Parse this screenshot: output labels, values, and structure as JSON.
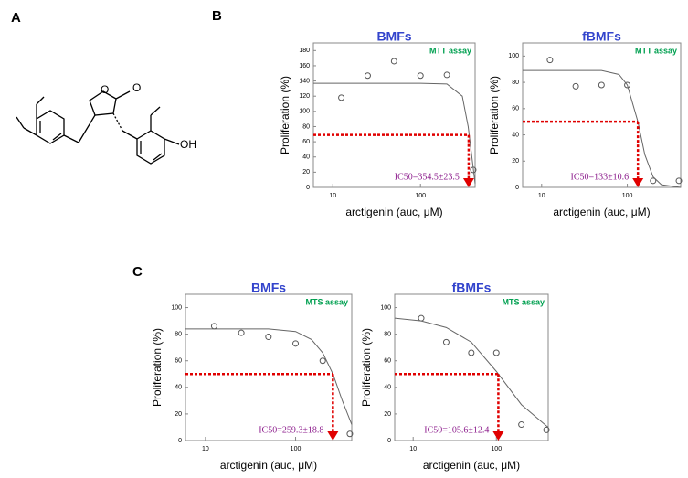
{
  "panels": [
    "A",
    "B",
    "C"
  ],
  "molecule": {
    "labels": [
      "O",
      "O",
      "OH"
    ]
  },
  "chart_data": [
    {
      "type": "scatter",
      "title": "BMFs",
      "badge": "MTT assay",
      "x_label": "arctigenin (auc, μM)",
      "y_label": "Proliferation (%)",
      "annotation": "IC50=354.5±23.5",
      "log_x": true,
      "xlim": [
        6,
        420
      ],
      "xticks": [
        10,
        100
      ],
      "ylim": [
        0,
        190
      ],
      "yticks": [
        0,
        20,
        40,
        60,
        80,
        100,
        120,
        140,
        160,
        180
      ],
      "series": [
        {
          "style": "markers",
          "color": "#555555",
          "x": [
            12.5,
            25,
            50,
            100,
            200,
            400
          ],
          "values": [
            118,
            147,
            166,
            147,
            148,
            23
          ]
        },
        {
          "style": "line",
          "color": "#666666",
          "x": [
            6,
            100,
            200,
            300,
            350,
            400,
            420
          ],
          "values": [
            137,
            137,
            136,
            120,
            80,
            25,
            5
          ]
        }
      ],
      "reference_line": {
        "x": 354.5,
        "y": 69,
        "color": "#e00000"
      }
    },
    {
      "type": "scatter",
      "title": "fBMFs",
      "badge": "MTT assay",
      "x_label": "arctigenin (auc, μM)",
      "y_label": "Proliferation (%)",
      "annotation": "IC50=133±10.6",
      "log_x": true,
      "xlim": [
        6,
        420
      ],
      "xticks": [
        10,
        100
      ],
      "ylim": [
        0,
        110
      ],
      "yticks": [
        0,
        20,
        40,
        60,
        80,
        100
      ],
      "series": [
        {
          "style": "markers",
          "color": "#555555",
          "x": [
            12.5,
            25,
            50,
            100,
            200,
            400
          ],
          "values": [
            97,
            77,
            78,
            78,
            5,
            5
          ]
        },
        {
          "style": "line",
          "color": "#666666",
          "x": [
            6,
            50,
            80,
            100,
            133,
            160,
            200,
            250,
            420
          ],
          "values": [
            89,
            89,
            86,
            78,
            50,
            25,
            8,
            2,
            0
          ]
        }
      ],
      "reference_line": {
        "x": 133,
        "y": 50,
        "color": "#e00000"
      }
    },
    {
      "type": "scatter",
      "title": "BMFs",
      "badge": "MTS assay",
      "x_label": "arctigenin (auc, μM)",
      "y_label": "Proliferation (%)",
      "annotation": "IC50=259.3±18.8",
      "log_x": true,
      "xlim": [
        6,
        420
      ],
      "xticks": [
        10,
        100
      ],
      "ylim": [
        0,
        110
      ],
      "yticks": [
        0,
        20,
        40,
        60,
        80,
        100
      ],
      "series": [
        {
          "style": "markers",
          "color": "#555555",
          "x": [
            12.5,
            25,
            50,
            100,
            200,
            400
          ],
          "values": [
            86,
            81,
            78,
            73,
            60,
            5
          ]
        },
        {
          "style": "line",
          "color": "#666666",
          "x": [
            6,
            50,
            100,
            150,
            200,
            260,
            330,
            420
          ],
          "values": [
            84,
            84,
            82,
            76,
            66,
            50,
            30,
            12
          ]
        }
      ],
      "reference_line": {
        "x": 259.3,
        "y": 50,
        "color": "#e00000"
      }
    },
    {
      "type": "scatter",
      "title": "fBMFs",
      "badge": "MTS assay",
      "x_label": "arctigenin (auc, μM)",
      "y_label": "Proliferation (%)",
      "annotation": "IC50=105.6±12.4",
      "log_x": true,
      "xlim": [
        6,
        420
      ],
      "xticks": [
        10,
        100
      ],
      "ylim": [
        0,
        110
      ],
      "yticks": [
        0,
        20,
        40,
        60,
        80,
        100
      ],
      "series": [
        {
          "style": "markers",
          "color": "#555555",
          "x": [
            12.5,
            25,
            50,
            100,
            200,
            400
          ],
          "values": [
            92,
            74,
            66,
            66,
            12,
            8
          ]
        },
        {
          "style": "line",
          "color": "#666666",
          "x": [
            6,
            12.5,
            25,
            50,
            100,
            200,
            400,
            420
          ],
          "values": [
            92,
            90,
            85,
            74,
            52,
            27,
            11,
            10
          ]
        }
      ],
      "reference_line": {
        "x": 105.6,
        "y": 50,
        "color": "#e00000"
      }
    }
  ]
}
